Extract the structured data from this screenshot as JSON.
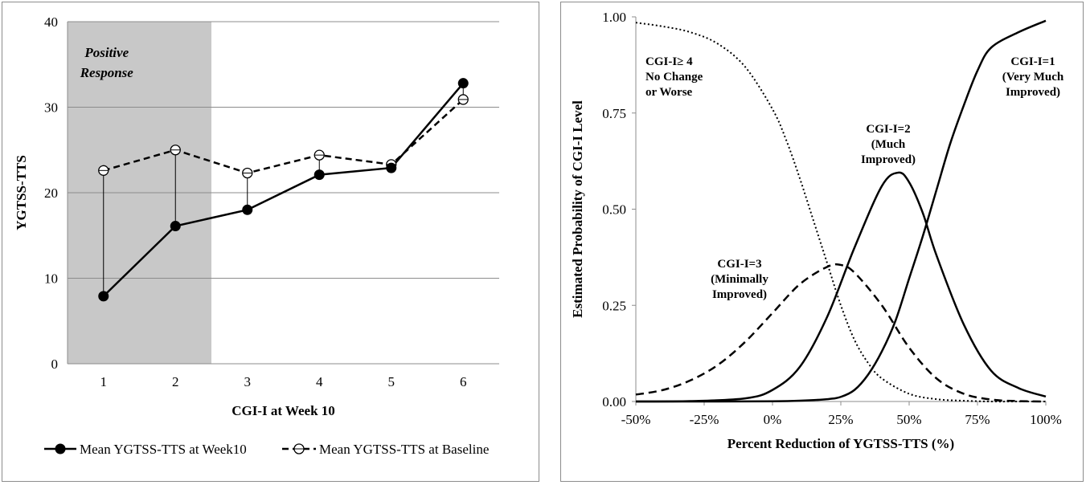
{
  "chart_data": [
    {
      "type": "line",
      "xlabel": "CGI-I at Week 10",
      "ylabel": "YGTSS-TTS",
      "ylim": [
        0,
        40
      ],
      "yticks": [
        0,
        10,
        20,
        30,
        40
      ],
      "categories": [
        "1",
        "2",
        "3",
        "4",
        "5",
        "6"
      ],
      "shaded_region": {
        "label_line1": "Positive",
        "label_line2": "Response",
        "from": 0.5,
        "to": 2.5,
        "color": "#c8c8c8"
      },
      "grid": true,
      "legend_position": "bottom",
      "series": [
        {
          "name": "Mean YGTSS-TTS at Week10",
          "values": [
            7.9,
            16.1,
            18.0,
            22.1,
            22.9,
            32.8
          ],
          "style": "solid",
          "marker": "filled-circle"
        },
        {
          "name": "Mean YGTSS-TTS at Baseline",
          "values": [
            22.6,
            25.0,
            22.3,
            24.4,
            23.3,
            30.9
          ],
          "style": "dashed",
          "marker": "open-circle"
        }
      ]
    },
    {
      "type": "line",
      "xlabel": "Percent Reduction of YGTSS-TTS (%)",
      "ylabel": "Estimated Probability of CGI-I Level",
      "xlim": [
        -50,
        100
      ],
      "ylim": [
        0,
        1
      ],
      "xticks": [
        -50,
        -25,
        0,
        25,
        50,
        75,
        100
      ],
      "xtick_labels": [
        "-50%",
        "-25%",
        "0%",
        "25%",
        "50%",
        "75%",
        "100%"
      ],
      "yticks": [
        0,
        0.25,
        0.5,
        0.75,
        1
      ],
      "ytick_labels": [
        "0.00",
        "0.25",
        "0.50",
        "0.75",
        "1.00"
      ],
      "grid": false,
      "series": [
        {
          "label_lines": [
            "CGI-I≥ 4",
            "No Change",
            "or Worse"
          ],
          "style": "dotted",
          "x": [
            -50,
            -40,
            -30,
            -20,
            -10,
            0,
            5,
            10,
            15,
            20,
            25,
            30,
            35,
            40,
            50,
            60,
            70,
            80,
            90,
            100
          ],
          "values": [
            0.985,
            0.975,
            0.96,
            0.93,
            0.87,
            0.76,
            0.68,
            0.58,
            0.47,
            0.36,
            0.25,
            0.16,
            0.1,
            0.06,
            0.02,
            0.006,
            0.002,
            0.0,
            0.0,
            0.0
          ]
        },
        {
          "label_lines": [
            "CGI-I=3",
            "(Minimally",
            "Improved)"
          ],
          "style": "dashed",
          "x": [
            -50,
            -40,
            -30,
            -20,
            -10,
            0,
            10,
            20,
            25,
            30,
            40,
            50,
            60,
            70,
            80,
            90,
            100
          ],
          "values": [
            0.018,
            0.03,
            0.055,
            0.095,
            0.155,
            0.23,
            0.305,
            0.35,
            0.355,
            0.335,
            0.25,
            0.14,
            0.06,
            0.02,
            0.005,
            0.001,
            0.0
          ]
        },
        {
          "label_lines": [
            "CGI-I=2",
            "(Much",
            "Improved)"
          ],
          "style": "solid",
          "x": [
            -50,
            -30,
            -10,
            0,
            10,
            20,
            30,
            40,
            46,
            50,
            55,
            60,
            70,
            80,
            90,
            100
          ],
          "values": [
            0.0,
            0.001,
            0.008,
            0.03,
            0.09,
            0.22,
            0.4,
            0.56,
            0.595,
            0.57,
            0.49,
            0.38,
            0.2,
            0.08,
            0.035,
            0.013
          ]
        },
        {
          "label_lines": [
            "CGI-I=1",
            "(Very Much",
            "Improved)"
          ],
          "style": "solid",
          "x": [
            -50,
            -20,
            0,
            10,
            20,
            25,
            30,
            35,
            40,
            45,
            50,
            55,
            60,
            65,
            70,
            75,
            80,
            90,
            100
          ],
          "values": [
            0.0,
            0.0,
            0.0005,
            0.002,
            0.006,
            0.012,
            0.03,
            0.07,
            0.13,
            0.21,
            0.32,
            0.43,
            0.55,
            0.67,
            0.77,
            0.86,
            0.92,
            0.96,
            0.99
          ]
        }
      ]
    }
  ]
}
